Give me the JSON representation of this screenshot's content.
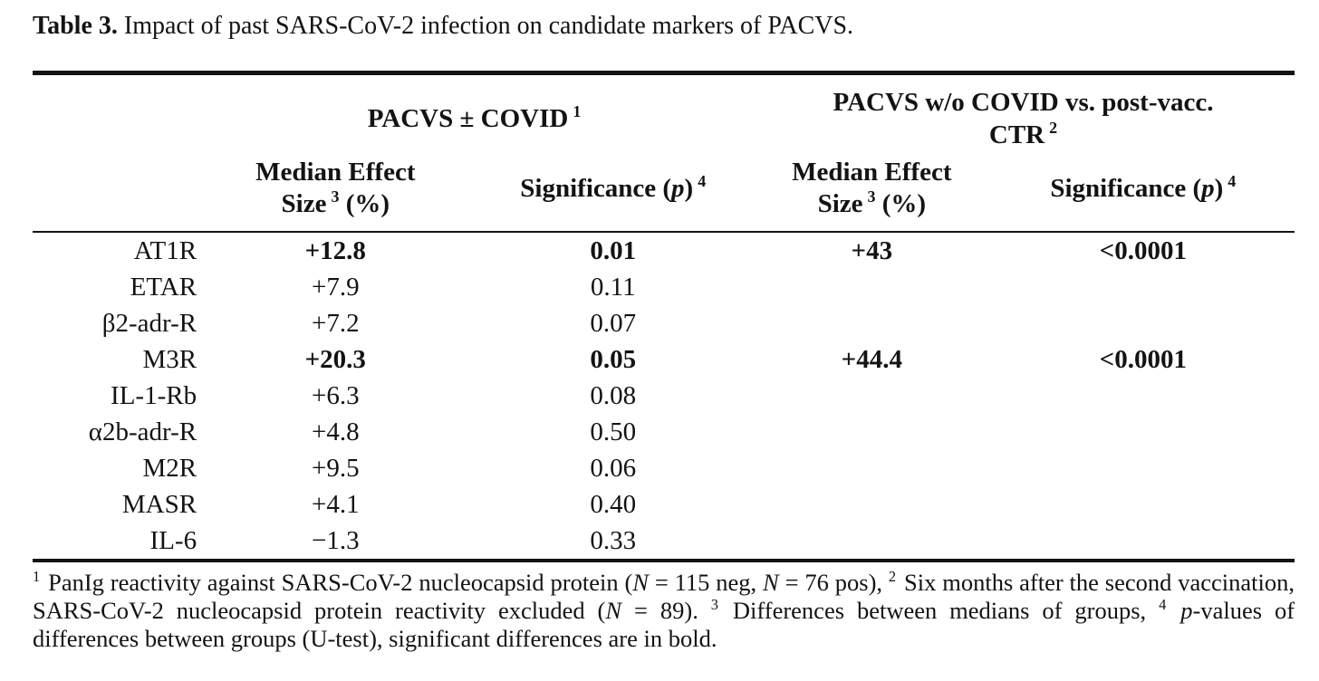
{
  "caption": {
    "label": "Table 3.",
    "text": " Impact of past SARS-CoV-2 infection on candidate markers of PACVS."
  },
  "table": {
    "group_headers": {
      "pacvs_covid": {
        "text": "PACVS ± COVID",
        "sup": "1"
      },
      "pacvs_ctr": {
        "line1": "PACVS w/o COVID vs. post-vacc.",
        "line2": "CTR",
        "sup": "2"
      }
    },
    "column_headers": {
      "effect1": {
        "line1": "Median Effect",
        "line2_pre": "Size",
        "sup": "3",
        "line2_post": " (%)"
      },
      "sig1": {
        "pre": "Significance (",
        "italic": "p",
        "post": ")",
        "sup": "4"
      },
      "effect2": {
        "line1": "Median Effect",
        "line2_pre": "Size",
        "sup": "3",
        "line2_post": " (%)"
      },
      "sig2": {
        "pre": "Significance (",
        "italic": "p",
        "post": ")",
        "sup": "4"
      }
    },
    "rows": [
      {
        "marker": "AT1R",
        "cells": [
          {
            "text": "+12.8",
            "bold": true
          },
          {
            "text": "0.01",
            "bold": true
          },
          {
            "text": "+43",
            "bold": true
          },
          {
            "text": "<0.0001",
            "bold": true
          }
        ]
      },
      {
        "marker": "ETAR",
        "cells": [
          {
            "text": "+7.9",
            "bold": false
          },
          {
            "text": "0.11",
            "bold": false
          },
          {
            "text": "",
            "bold": false
          },
          {
            "text": "",
            "bold": false
          }
        ]
      },
      {
        "marker": "β2-adr-R",
        "cells": [
          {
            "text": "+7.2",
            "bold": false
          },
          {
            "text": "0.07",
            "bold": false
          },
          {
            "text": "",
            "bold": false
          },
          {
            "text": "",
            "bold": false
          }
        ]
      },
      {
        "marker": "M3R",
        "cells": [
          {
            "text": "+20.3",
            "bold": true
          },
          {
            "text": "0.05",
            "bold": true
          },
          {
            "text": "+44.4",
            "bold": true
          },
          {
            "text": "<0.0001",
            "bold": true
          }
        ]
      },
      {
        "marker": "IL-1-Rb",
        "cells": [
          {
            "text": "+6.3",
            "bold": false
          },
          {
            "text": "0.08",
            "bold": false
          },
          {
            "text": "",
            "bold": false
          },
          {
            "text": "",
            "bold": false
          }
        ]
      },
      {
        "marker": "α2b-adr-R",
        "cells": [
          {
            "text": "+4.8",
            "bold": false
          },
          {
            "text": "0.50",
            "bold": false
          },
          {
            "text": "",
            "bold": false
          },
          {
            "text": "",
            "bold": false
          }
        ]
      },
      {
        "marker": "M2R",
        "cells": [
          {
            "text": "+9.5",
            "bold": false
          },
          {
            "text": "0.06",
            "bold": false
          },
          {
            "text": "",
            "bold": false
          },
          {
            "text": "",
            "bold": false
          }
        ]
      },
      {
        "marker": "MASR",
        "cells": [
          {
            "text": "+4.1",
            "bold": false
          },
          {
            "text": "0.40",
            "bold": false
          },
          {
            "text": "",
            "bold": false
          },
          {
            "text": "",
            "bold": false
          }
        ]
      },
      {
        "marker": "IL-6",
        "cells": [
          {
            "text": "−1.3",
            "bold": false
          },
          {
            "text": "0.33",
            "bold": false
          },
          {
            "text": "",
            "bold": false
          },
          {
            "text": "",
            "bold": false
          }
        ]
      }
    ]
  },
  "footnotes": {
    "segments": [
      {
        "style": "sup",
        "text": "1"
      },
      {
        "style": "",
        "text": " PanIg reactivity against SARS-CoV-2 nucleocapsid protein ("
      },
      {
        "style": "i",
        "text": "N"
      },
      {
        "style": "",
        "text": " = 115 neg, "
      },
      {
        "style": "i",
        "text": "N"
      },
      {
        "style": "",
        "text": " = 76 pos), "
      },
      {
        "style": "sup",
        "text": "2"
      },
      {
        "style": "",
        "text": " Six months after the second vaccination, SARS-CoV-2 nucleocapsid protein reactivity excluded ("
      },
      {
        "style": "i",
        "text": "N"
      },
      {
        "style": "",
        "text": " = 89). "
      },
      {
        "style": "sup",
        "text": "3"
      },
      {
        "style": "",
        "text": " Differences between medians of groups, "
      },
      {
        "style": "sup",
        "text": "4"
      },
      {
        "style": "",
        "text": " "
      },
      {
        "style": "i",
        "text": "p"
      },
      {
        "style": "",
        "text": "-values of differences between groups (U-test), significant differences are in bold."
      }
    ]
  }
}
